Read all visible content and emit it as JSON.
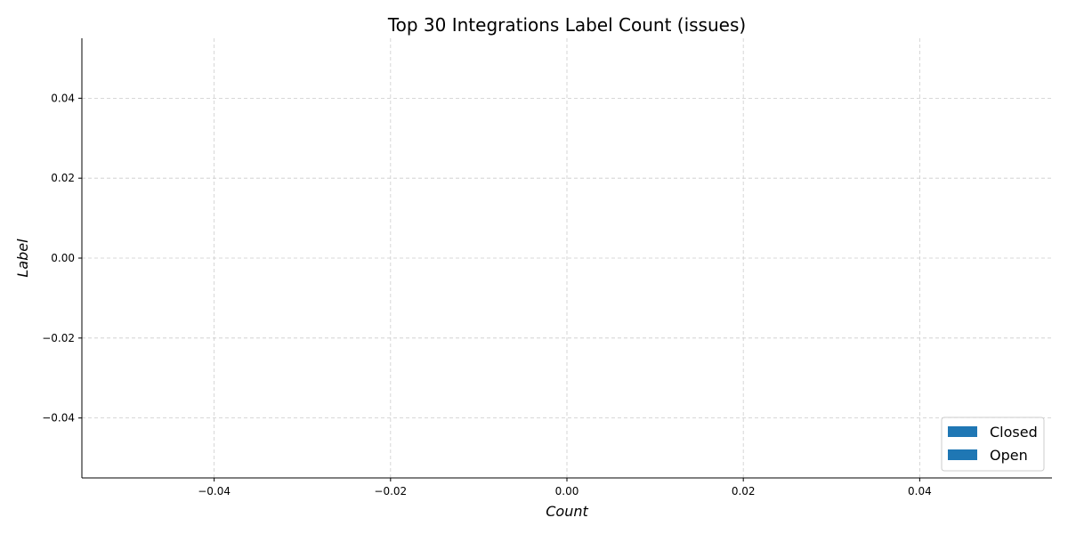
{
  "chart_data": {
    "type": "bar",
    "orientation": "horizontal",
    "stacked": true,
    "title": "Top 30 Integrations Label Count (issues)",
    "xlabel": "Count",
    "ylabel": "Label",
    "categories": [],
    "series": [
      {
        "name": "Closed",
        "values": [],
        "color": "#1f77b4"
      },
      {
        "name": "Open",
        "values": [],
        "color": "#1f77b4"
      }
    ],
    "xlim": [
      -0.055,
      0.055
    ],
    "ylim": [
      0.055,
      -0.055
    ],
    "y_inverted": true,
    "x_ticks": [
      -0.04,
      -0.02,
      0.0,
      0.02,
      0.04
    ],
    "x_tick_labels": [
      "−0.04",
      "−0.02",
      "0.00",
      "0.02",
      "0.04"
    ],
    "y_ticks": [
      -0.04,
      -0.02,
      0.0,
      0.02,
      0.04
    ],
    "y_tick_labels": [
      "−0.04",
      "−0.02",
      "0.00",
      "0.02",
      "0.04"
    ],
    "grid": true,
    "grid_style": "dashed",
    "legend_position": "lower-right"
  }
}
